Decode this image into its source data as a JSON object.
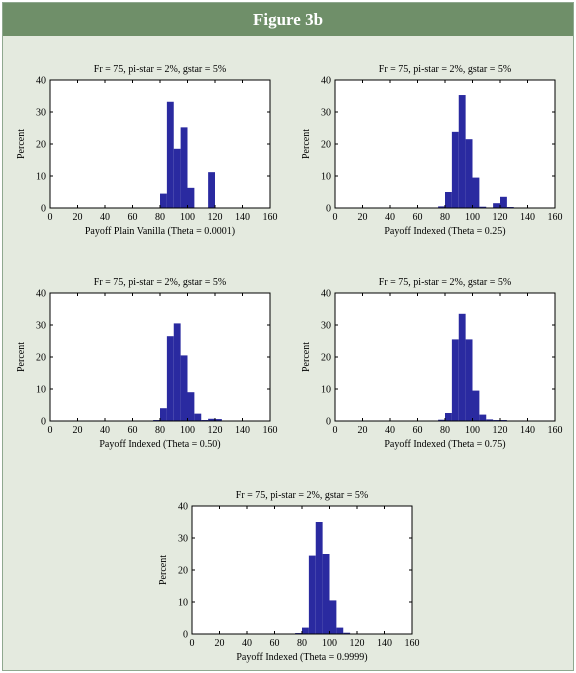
{
  "figure_title": "Figure 3b",
  "colors": {
    "bar": "#2a2aa0",
    "header": "#6f8f69",
    "panel_bg": "#e4eadf"
  },
  "chart_data": [
    {
      "type": "bar",
      "title": "Fr = 75, pi-star = 2%, gstar = 5%",
      "xlabel": "Payoff Plain Vanilla (Theta = 0.0001)",
      "ylabel": "Percent",
      "xlim": [
        0,
        160
      ],
      "ylim": [
        0,
        40
      ],
      "xticks": [
        0,
        20,
        40,
        60,
        80,
        100,
        120,
        140,
        160
      ],
      "yticks": [
        0,
        10,
        20,
        30,
        40
      ],
      "bin_width": 5,
      "bins": [
        {
          "x": 82.5,
          "y": 4.5
        },
        {
          "x": 87.5,
          "y": 33.2
        },
        {
          "x": 92.5,
          "y": 18.5
        },
        {
          "x": 97.5,
          "y": 25.2
        },
        {
          "x": 102.5,
          "y": 6.3
        },
        {
          "x": 117.5,
          "y": 11.2
        }
      ]
    },
    {
      "type": "bar",
      "title": "Fr = 75, pi-star = 2%, gstar = 5%",
      "xlabel": "Payoff Indexed (Theta = 0.25)",
      "ylabel": "Percent",
      "xlim": [
        0,
        160
      ],
      "ylim": [
        0,
        40
      ],
      "xticks": [
        0,
        20,
        40,
        60,
        80,
        100,
        120,
        140,
        160
      ],
      "yticks": [
        0,
        10,
        20,
        30,
        40
      ],
      "bin_width": 5,
      "bins": [
        {
          "x": 77.5,
          "y": 0.5
        },
        {
          "x": 82.5,
          "y": 5.0
        },
        {
          "x": 87.5,
          "y": 23.8
        },
        {
          "x": 92.5,
          "y": 35.3
        },
        {
          "x": 97.5,
          "y": 21.5
        },
        {
          "x": 102.5,
          "y": 9.5
        },
        {
          "x": 107.5,
          "y": 0.4
        },
        {
          "x": 117.5,
          "y": 1.5
        },
        {
          "x": 122.5,
          "y": 3.5
        },
        {
          "x": 127.5,
          "y": 0.3
        }
      ]
    },
    {
      "type": "bar",
      "title": "Fr = 75, pi-star = 2%, gstar = 5%",
      "xlabel": "Payoff Indexed (Theta = 0.50)",
      "ylabel": "Percent",
      "xlim": [
        0,
        160
      ],
      "ylim": [
        0,
        40
      ],
      "xticks": [
        0,
        20,
        40,
        60,
        80,
        100,
        120,
        140,
        160
      ],
      "yticks": [
        0,
        10,
        20,
        30,
        40
      ],
      "bin_width": 5,
      "bins": [
        {
          "x": 77.5,
          "y": 0.3
        },
        {
          "x": 82.5,
          "y": 4.0
        },
        {
          "x": 87.5,
          "y": 26.5
        },
        {
          "x": 92.5,
          "y": 30.5
        },
        {
          "x": 97.5,
          "y": 20.5
        },
        {
          "x": 102.5,
          "y": 9.0
        },
        {
          "x": 107.5,
          "y": 2.3
        },
        {
          "x": 112.5,
          "y": 0.3
        },
        {
          "x": 117.5,
          "y": 0.7
        },
        {
          "x": 122.5,
          "y": 0.6
        }
      ]
    },
    {
      "type": "bar",
      "title": "Fr = 75, pi-star = 2%, gstar = 5%",
      "xlabel": "Payoff Indexed (Theta = 0.75)",
      "ylabel": "Percent",
      "xlim": [
        0,
        160
      ],
      "ylim": [
        0,
        40
      ],
      "xticks": [
        0,
        20,
        40,
        60,
        80,
        100,
        120,
        140,
        160
      ],
      "yticks": [
        0,
        10,
        20,
        30,
        40
      ],
      "bin_width": 5,
      "bins": [
        {
          "x": 77.5,
          "y": 0.4
        },
        {
          "x": 82.5,
          "y": 2.5
        },
        {
          "x": 87.5,
          "y": 25.5
        },
        {
          "x": 92.5,
          "y": 33.5
        },
        {
          "x": 97.5,
          "y": 25.5
        },
        {
          "x": 102.5,
          "y": 9.5
        },
        {
          "x": 107.5,
          "y": 2.0
        },
        {
          "x": 112.5,
          "y": 0.5
        },
        {
          "x": 117.5,
          "y": 0.3
        },
        {
          "x": 122.5,
          "y": 0.3
        }
      ]
    },
    {
      "type": "bar",
      "title": "Fr = 75, pi-star = 2%, gstar = 5%",
      "xlabel": "Payoff Indexed (Theta = 0.9999)",
      "ylabel": "Percent",
      "xlim": [
        0,
        160
      ],
      "ylim": [
        0,
        40
      ],
      "xticks": [
        0,
        20,
        40,
        60,
        80,
        100,
        120,
        140,
        160
      ],
      "yticks": [
        0,
        10,
        20,
        30,
        40
      ],
      "bin_width": 5,
      "bins": [
        {
          "x": 77.5,
          "y": 0.3
        },
        {
          "x": 82.5,
          "y": 2.0
        },
        {
          "x": 87.5,
          "y": 24.5
        },
        {
          "x": 92.5,
          "y": 35.0
        },
        {
          "x": 97.5,
          "y": 25.0
        },
        {
          "x": 102.5,
          "y": 10.5
        },
        {
          "x": 107.5,
          "y": 2.0
        },
        {
          "x": 112.5,
          "y": 0.4
        }
      ]
    }
  ]
}
